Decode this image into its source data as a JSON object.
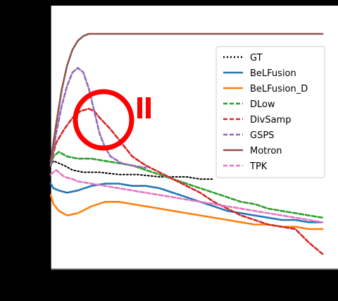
{
  "chart_data": {
    "type": "line",
    "title": "",
    "xlabel": "",
    "ylabel": "",
    "xlim": [
      0,
      1
    ],
    "ylim": [
      0,
      1
    ],
    "grid": false,
    "legend_placement": "upper-right",
    "annotation": {
      "shape": "red-circle",
      "mark": "II"
    },
    "series": [
      {
        "name": "GT",
        "color": "#000000",
        "dash": "dotted",
        "x": [
          0.0,
          0.01,
          0.03,
          0.05,
          0.08,
          0.12,
          0.18,
          0.25,
          0.32,
          0.4,
          0.5,
          0.55,
          0.6
        ],
        "y": [
          0.42,
          0.44,
          0.43,
          0.42,
          0.4,
          0.39,
          0.39,
          0.38,
          0.38,
          0.37,
          0.37,
          0.36,
          0.36
        ]
      },
      {
        "name": "BeLFusion",
        "color": "#1f77b4",
        "dash": "solid",
        "x": [
          0.0,
          0.01,
          0.03,
          0.06,
          0.1,
          0.15,
          0.2,
          0.25,
          0.3,
          0.35,
          0.4,
          0.45,
          0.5,
          0.55,
          0.6,
          0.65,
          0.7,
          0.75,
          0.8,
          0.85,
          0.9,
          0.95,
          1.0
        ],
        "y": [
          0.34,
          0.32,
          0.31,
          0.3,
          0.31,
          0.33,
          0.34,
          0.34,
          0.33,
          0.33,
          0.32,
          0.3,
          0.28,
          0.26,
          0.24,
          0.22,
          0.21,
          0.2,
          0.19,
          0.18,
          0.18,
          0.17,
          0.17
        ]
      },
      {
        "name": "BeLFusion_D",
        "color": "#ff7f0e",
        "dash": "solid",
        "x": [
          0.0,
          0.01,
          0.03,
          0.06,
          0.1,
          0.15,
          0.2,
          0.25,
          0.3,
          0.35,
          0.4,
          0.45,
          0.5,
          0.55,
          0.6,
          0.65,
          0.7,
          0.75,
          0.8,
          0.85,
          0.9,
          0.95,
          1.0
        ],
        "y": [
          0.29,
          0.25,
          0.22,
          0.2,
          0.21,
          0.24,
          0.26,
          0.26,
          0.25,
          0.24,
          0.23,
          0.22,
          0.21,
          0.2,
          0.19,
          0.18,
          0.17,
          0.16,
          0.16,
          0.15,
          0.15,
          0.14,
          0.14
        ]
      },
      {
        "name": "DLow",
        "color": "#2ca02c",
        "dash": "dashed",
        "x": [
          0.0,
          0.01,
          0.03,
          0.06,
          0.1,
          0.15,
          0.2,
          0.25,
          0.3,
          0.35,
          0.4,
          0.45,
          0.5,
          0.55,
          0.6,
          0.65,
          0.7,
          0.75,
          0.8,
          0.85,
          0.9,
          0.95,
          1.0
        ],
        "y": [
          0.42,
          0.46,
          0.48,
          0.46,
          0.45,
          0.45,
          0.44,
          0.43,
          0.42,
          0.4,
          0.38,
          0.36,
          0.34,
          0.32,
          0.3,
          0.28,
          0.26,
          0.25,
          0.23,
          0.22,
          0.21,
          0.2,
          0.19
        ]
      },
      {
        "name": "DivSamp",
        "color": "#d62728",
        "dash": "dashed",
        "x": [
          0.0,
          0.02,
          0.05,
          0.08,
          0.11,
          0.14,
          0.16,
          0.18,
          0.22,
          0.26,
          0.3,
          0.35,
          0.4,
          0.45,
          0.5,
          0.55,
          0.6,
          0.65,
          0.7,
          0.75,
          0.8,
          0.85,
          0.9,
          0.95,
          1.0
        ],
        "y": [
          0.43,
          0.52,
          0.58,
          0.63,
          0.66,
          0.67,
          0.66,
          0.63,
          0.58,
          0.52,
          0.46,
          0.42,
          0.39,
          0.36,
          0.33,
          0.3,
          0.26,
          0.23,
          0.2,
          0.18,
          0.16,
          0.15,
          0.14,
          0.08,
          0.03
        ]
      },
      {
        "name": "GSPS",
        "color": "#9467bd",
        "dash": "dashed",
        "x": [
          0.0,
          0.02,
          0.04,
          0.06,
          0.08,
          0.1,
          0.12,
          0.14,
          0.16,
          0.18,
          0.2,
          0.22,
          0.26,
          0.3,
          0.35
        ],
        "y": [
          0.42,
          0.56,
          0.68,
          0.77,
          0.83,
          0.85,
          0.83,
          0.76,
          0.66,
          0.56,
          0.5,
          0.46,
          0.43,
          0.42,
          0.41
        ]
      },
      {
        "name": "Motron",
        "color": "#8c564b",
        "dash": "solid",
        "x": [
          0.0,
          0.02,
          0.04,
          0.06,
          0.08,
          0.1,
          0.12,
          0.14,
          0.16,
          0.18,
          0.2,
          0.25,
          0.3,
          0.4,
          0.5,
          0.6,
          0.7,
          0.8,
          0.9,
          1.0
        ],
        "y": [
          0.44,
          0.6,
          0.75,
          0.86,
          0.93,
          0.97,
          0.99,
          1.0,
          1.0,
          1.0,
          1.0,
          1.0,
          1.0,
          1.0,
          1.0,
          1.0,
          1.0,
          1.0,
          1.0,
          1.0
        ]
      },
      {
        "name": "TPK",
        "color": "#e377c2",
        "dash": "dashed",
        "x": [
          0.0,
          0.02,
          0.05,
          0.08,
          0.1,
          0.15,
          0.2,
          0.25,
          0.3,
          0.35,
          0.4,
          0.45,
          0.5,
          0.55,
          0.6,
          0.65,
          0.7,
          0.75,
          0.8,
          0.85,
          0.9,
          0.95,
          1.0
        ],
        "y": [
          0.38,
          0.4,
          0.37,
          0.36,
          0.35,
          0.34,
          0.33,
          0.32,
          0.31,
          0.3,
          0.29,
          0.28,
          0.27,
          0.26,
          0.25,
          0.24,
          0.23,
          0.22,
          0.21,
          0.2,
          0.19,
          0.18,
          0.17
        ]
      }
    ]
  }
}
